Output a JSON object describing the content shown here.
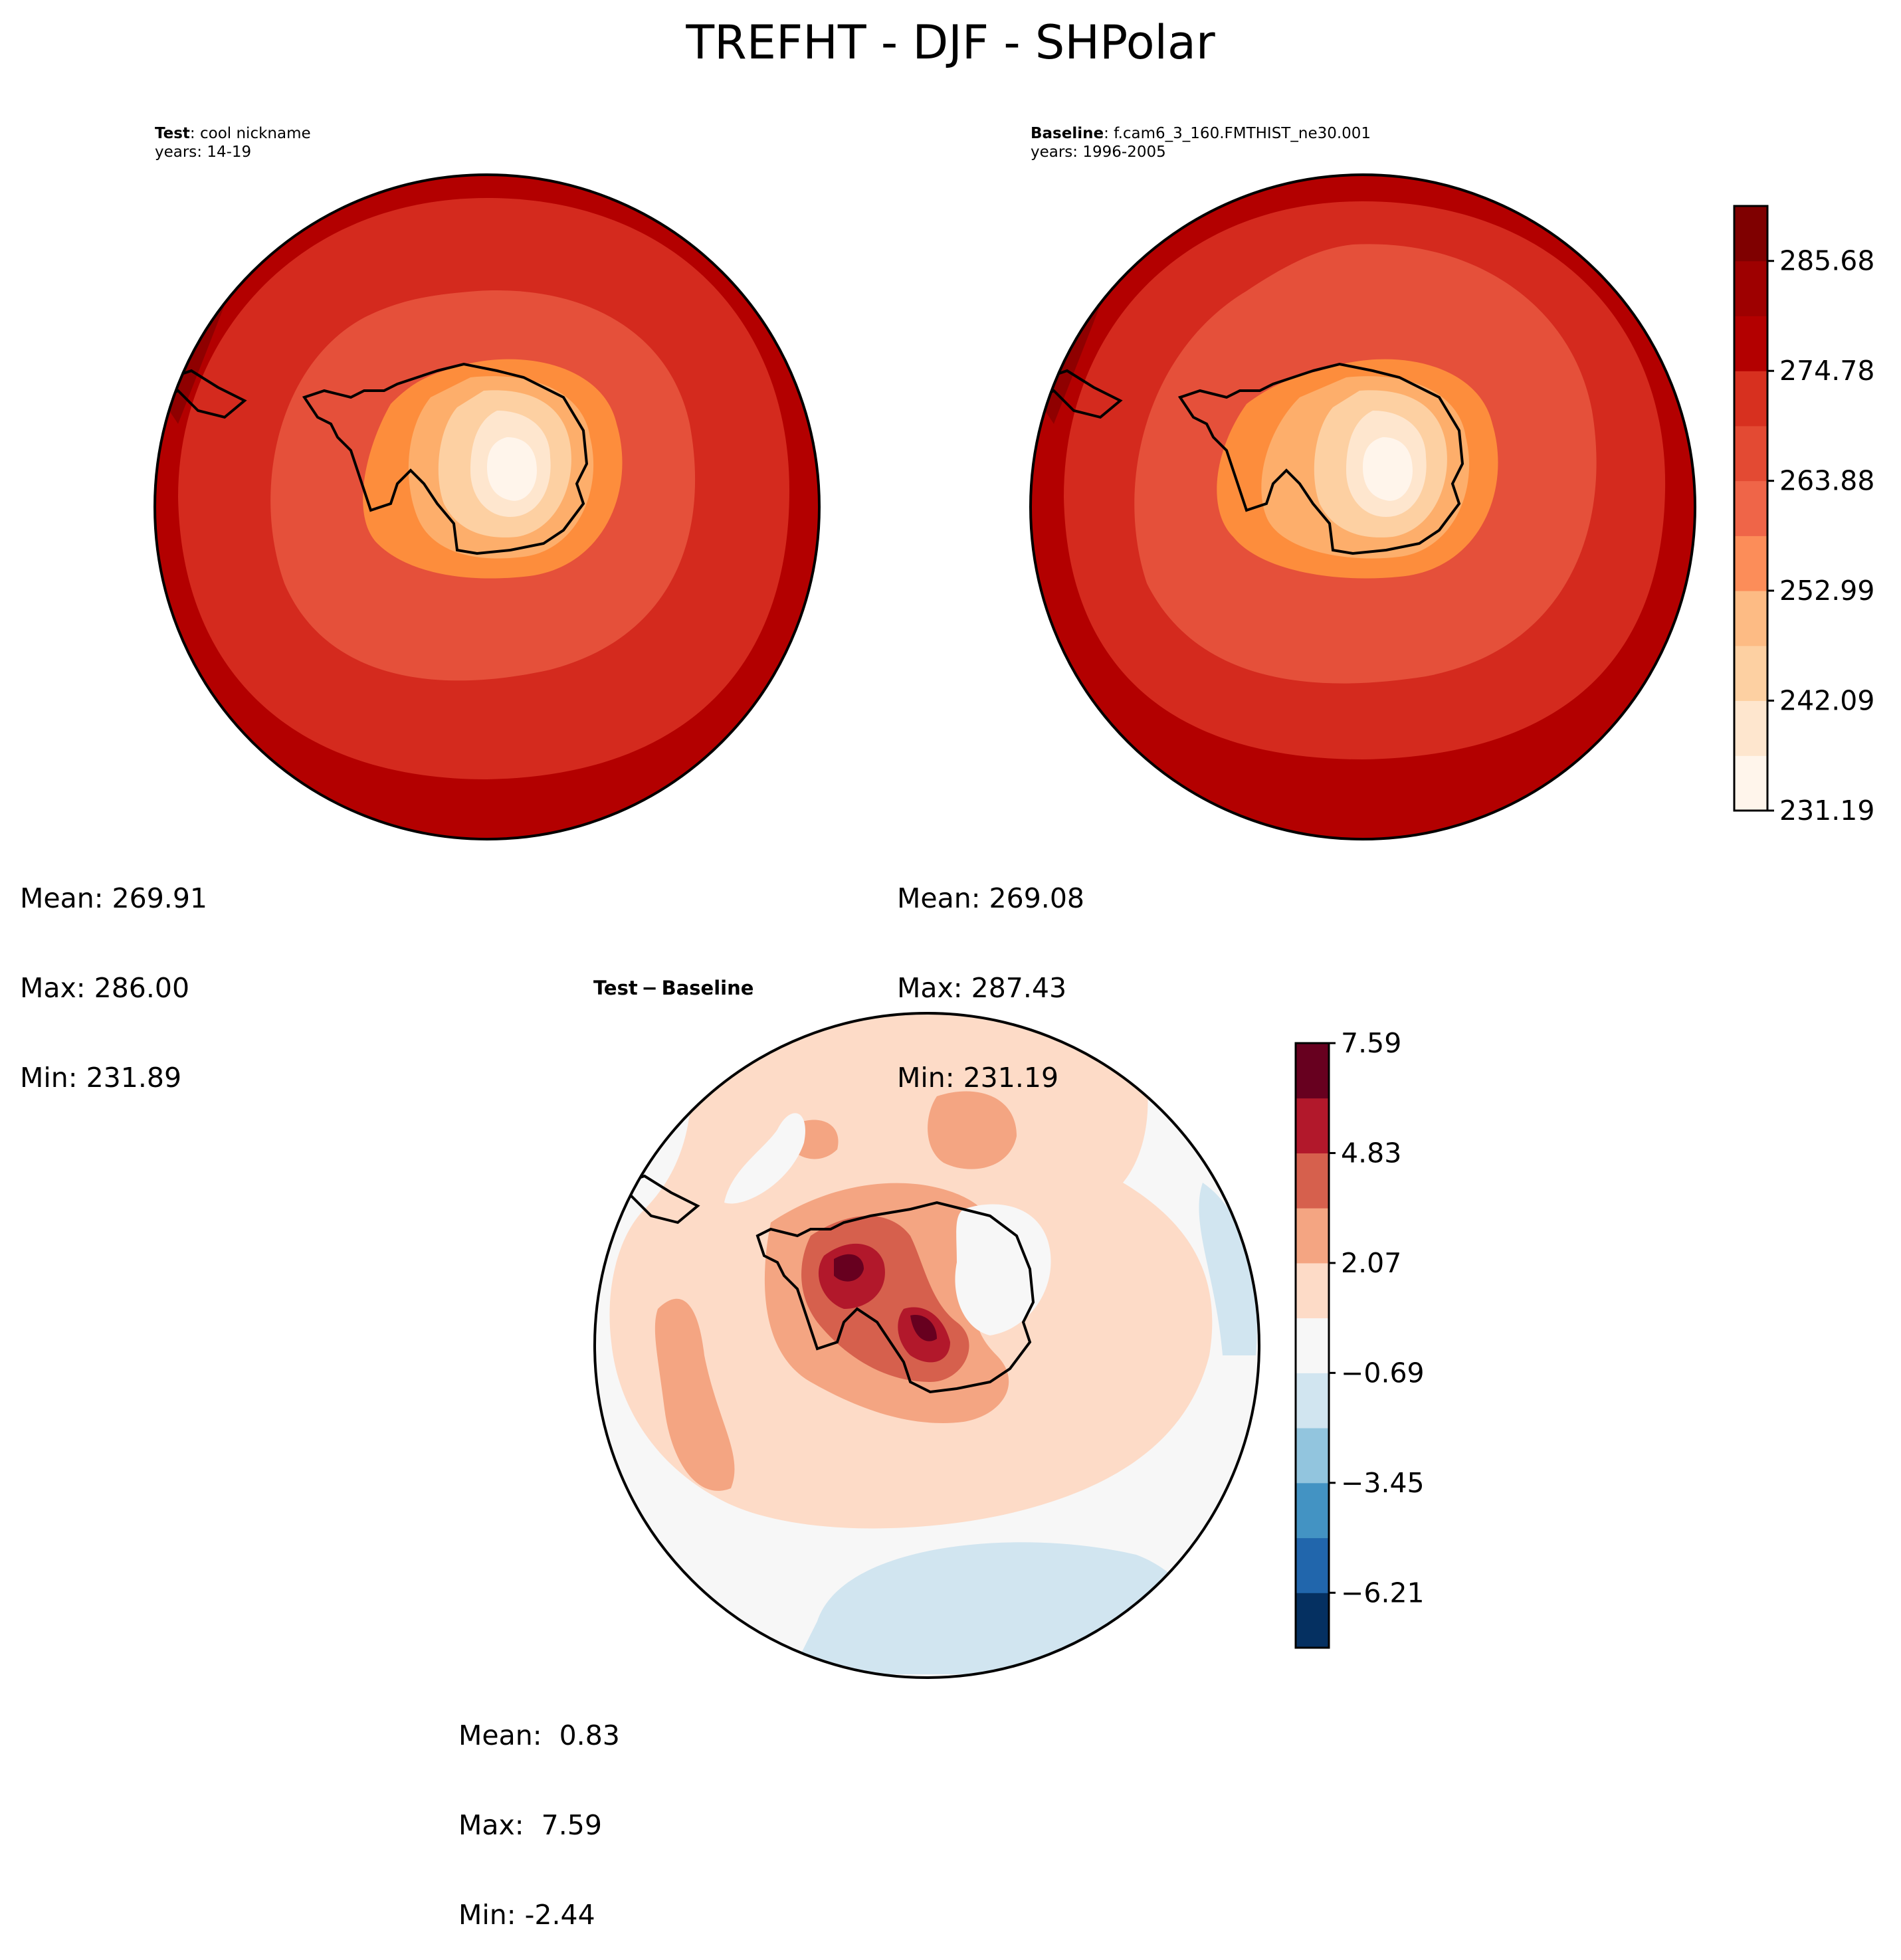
{
  "figure": {
    "title": "TREFHT - DJF - SHPolar"
  },
  "chart_data": [
    {
      "type": "heatmap",
      "panel": "test",
      "label_bold": "Test",
      "label_text": ": cool nickname",
      "years": "years: 14-19",
      "stats": {
        "mean": "Mean: 269.91",
        "max": "Max: 286.00",
        "min": "Min: 231.89"
      },
      "contour_levels": [
        231.19,
        236.64,
        242.09,
        247.54,
        252.99,
        258.44,
        263.88,
        269.33,
        274.78,
        280.23,
        285.68,
        291.13
      ],
      "colormap": [
        "#fff5eb",
        "#fee6ce",
        "#fdd0a2",
        "#fdae6b",
        "#fd8d3c",
        "#f16913",
        "#e5503a",
        "#d42a1e",
        "#b30000",
        "#8f0000",
        "#7f0000"
      ]
    },
    {
      "type": "heatmap",
      "panel": "baseline",
      "label_bold": "Baseline",
      "label_text": ": f.cam6_3_160.FMTHIST_ne30.001",
      "years": "years: 1996-2005",
      "stats": {
        "mean": "Mean: 269.08",
        "max": "Max: 287.43",
        "min": "Min: 231.19"
      },
      "colorbar": {
        "ticks": [
          "285.68",
          "274.78",
          "263.88",
          "252.99",
          "242.09",
          "231.19"
        ],
        "tick_values": [
          285.68,
          274.78,
          263.88,
          252.99,
          242.09,
          231.19
        ],
        "range": [
          231.19,
          291.13
        ],
        "colors": [
          "#fff5eb",
          "#fee6ce",
          "#fdd0a2",
          "#fdbb84",
          "#fc8d59",
          "#ef6548",
          "#e34a33",
          "#d7301f",
          "#b30000",
          "#9e0000",
          "#7f0000"
        ]
      }
    },
    {
      "type": "heatmap",
      "panel": "difference",
      "label": "Test − Baseline",
      "label_bold_a": "Test",
      "label_bold_b": "Baseline",
      "stats": {
        "mean": "Mean:  0.83",
        "max": "Max:  7.59",
        "min": "Min: -2.44"
      },
      "colorbar": {
        "ticks": [
          "7.59",
          "4.83",
          "2.07",
          "−0.69",
          "−3.45",
          "−6.21"
        ],
        "tick_values": [
          7.59,
          4.83,
          2.07,
          -0.69,
          -3.45,
          -6.21
        ],
        "range": [
          -7.59,
          7.59
        ],
        "colors": [
          "#053061",
          "#2166ac",
          "#4393c3",
          "#92c5de",
          "#d1e5f0",
          "#f7f7f7",
          "#fddbc7",
          "#f4a582",
          "#d6604d",
          "#b2182b",
          "#67001f"
        ]
      }
    }
  ],
  "colors": {
    "outline": "#000000",
    "coast": "#000000"
  }
}
